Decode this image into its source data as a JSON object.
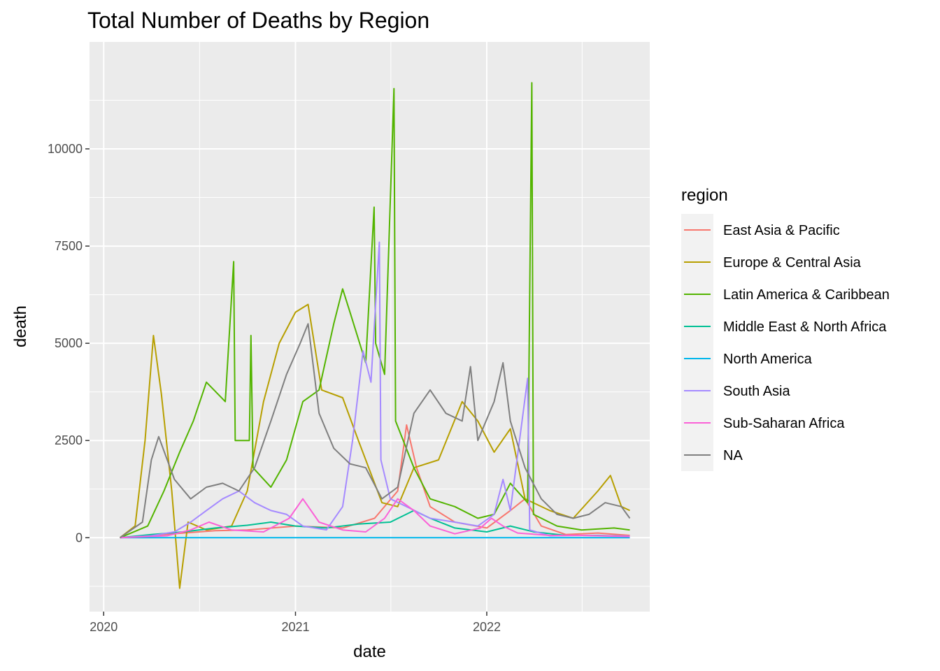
{
  "chart_data": {
    "type": "line",
    "title": "Total Number of Deaths by Region",
    "xlabel": "date",
    "ylabel": "death",
    "x_range": [
      "2019-12-05",
      "2022-11-08"
    ],
    "ylim": [
      -1900,
      12750
    ],
    "x_ticks": [
      "2020-01-01",
      "2021-01-01",
      "2022-01-01"
    ],
    "x_tick_labels": [
      "2020",
      "2021",
      "2022"
    ],
    "y_ticks": [
      0,
      2500,
      5000,
      7500,
      10000
    ],
    "y_tick_labels": [
      "0",
      "2500",
      "5000",
      "7500",
      "10000"
    ],
    "grid": true,
    "legend": {
      "title": "region",
      "position": "right"
    },
    "series": [
      {
        "name": "East Asia & Pacific",
        "color": "#F8766D",
        "points": [
          [
            "2020-02-01",
            0
          ],
          [
            "2020-04-01",
            60
          ],
          [
            "2020-06-01",
            120
          ],
          [
            "2020-08-01",
            180
          ],
          [
            "2020-10-01",
            200
          ],
          [
            "2021-01-01",
            300
          ],
          [
            "2021-04-01",
            250
          ],
          [
            "2021-06-01",
            500
          ],
          [
            "2021-07-15",
            1200
          ],
          [
            "2021-08-01",
            2900
          ],
          [
            "2021-08-20",
            1800
          ],
          [
            "2021-09-15",
            800
          ],
          [
            "2021-11-01",
            400
          ],
          [
            "2022-01-01",
            250
          ],
          [
            "2022-02-15",
            700
          ],
          [
            "2022-03-15",
            1000
          ],
          [
            "2022-04-15",
            300
          ],
          [
            "2022-06-01",
            80
          ],
          [
            "2022-08-01",
            120
          ],
          [
            "2022-10-01",
            60
          ]
        ]
      },
      {
        "name": "Europe & Central Asia",
        "color": "#B79F00",
        "points": [
          [
            "2020-02-01",
            0
          ],
          [
            "2020-03-01",
            300
          ],
          [
            "2020-03-20",
            2500
          ],
          [
            "2020-04-05",
            5200
          ],
          [
            "2020-04-20",
            3700
          ],
          [
            "2020-05-10",
            1200
          ],
          [
            "2020-05-25",
            -1300
          ],
          [
            "2020-06-10",
            400
          ],
          [
            "2020-07-15",
            200
          ],
          [
            "2020-09-01",
            300
          ],
          [
            "2020-10-01",
            1200
          ],
          [
            "2020-11-01",
            3500
          ],
          [
            "2020-12-01",
            5000
          ],
          [
            "2021-01-01",
            5800
          ],
          [
            "2021-01-25",
            6000
          ],
          [
            "2021-02-20",
            3800
          ],
          [
            "2021-04-01",
            3600
          ],
          [
            "2021-05-01",
            2500
          ],
          [
            "2021-06-15",
            900
          ],
          [
            "2021-07-15",
            800
          ],
          [
            "2021-08-15",
            1800
          ],
          [
            "2021-10-01",
            2000
          ],
          [
            "2021-11-15",
            3500
          ],
          [
            "2021-12-15",
            3000
          ],
          [
            "2022-01-15",
            2200
          ],
          [
            "2022-02-15",
            2800
          ],
          [
            "2022-03-15",
            1000
          ],
          [
            "2022-05-01",
            700
          ],
          [
            "2022-06-15",
            500
          ],
          [
            "2022-08-01",
            1200
          ],
          [
            "2022-08-25",
            1600
          ],
          [
            "2022-09-15",
            800
          ],
          [
            "2022-10-01",
            700
          ]
        ]
      },
      {
        "name": "Latin America & Caribbean",
        "color": "#53B400",
        "points": [
          [
            "2020-02-01",
            0
          ],
          [
            "2020-03-25",
            300
          ],
          [
            "2020-04-25",
            1200
          ],
          [
            "2020-05-25",
            2200
          ],
          [
            "2020-06-20",
            3000
          ],
          [
            "2020-07-15",
            4000
          ],
          [
            "2020-08-20",
            3500
          ],
          [
            "2020-09-05",
            7100
          ],
          [
            "2020-09-08",
            2500
          ],
          [
            "2020-10-05",
            2500
          ],
          [
            "2020-10-08",
            5200
          ],
          [
            "2020-10-12",
            1800
          ],
          [
            "2020-11-15",
            1300
          ],
          [
            "2020-12-15",
            2000
          ],
          [
            "2021-01-15",
            3500
          ],
          [
            "2021-02-15",
            3800
          ],
          [
            "2021-03-15",
            5500
          ],
          [
            "2021-04-01",
            6400
          ],
          [
            "2021-04-15",
            5800
          ],
          [
            "2021-05-15",
            4500
          ],
          [
            "2021-05-31",
            8500
          ],
          [
            "2021-06-03",
            5000
          ],
          [
            "2021-06-20",
            4200
          ],
          [
            "2021-07-08",
            11550
          ],
          [
            "2021-07-11",
            3000
          ],
          [
            "2021-08-15",
            1800
          ],
          [
            "2021-09-15",
            1000
          ],
          [
            "2021-11-01",
            800
          ],
          [
            "2021-12-15",
            500
          ],
          [
            "2022-01-15",
            600
          ],
          [
            "2022-02-15",
            1400
          ],
          [
            "2022-03-20",
            900
          ],
          [
            "2022-03-28",
            11700
          ],
          [
            "2022-03-31",
            600
          ],
          [
            "2022-05-15",
            300
          ],
          [
            "2022-07-01",
            200
          ],
          [
            "2022-09-01",
            250
          ],
          [
            "2022-10-01",
            200
          ]
        ]
      },
      {
        "name": "Middle East & North Africa",
        "color": "#00C094",
        "points": [
          [
            "2020-02-01",
            0
          ],
          [
            "2020-04-01",
            80
          ],
          [
            "2020-06-01",
            150
          ],
          [
            "2020-08-01",
            250
          ],
          [
            "2020-10-01",
            320
          ],
          [
            "2020-11-15",
            400
          ],
          [
            "2021-01-01",
            300
          ],
          [
            "2021-03-01",
            250
          ],
          [
            "2021-05-01",
            350
          ],
          [
            "2021-07-01",
            400
          ],
          [
            "2021-08-15",
            700
          ],
          [
            "2021-09-15",
            500
          ],
          [
            "2021-11-01",
            250
          ],
          [
            "2022-01-01",
            150
          ],
          [
            "2022-02-15",
            300
          ],
          [
            "2022-04-01",
            150
          ],
          [
            "2022-06-01",
            60
          ],
          [
            "2022-08-01",
            60
          ],
          [
            "2022-10-01",
            40
          ]
        ]
      },
      {
        "name": "North America",
        "color": "#00B6EB",
        "points": [
          [
            "2020-02-01",
            0
          ],
          [
            "2021-01-01",
            0
          ],
          [
            "2022-01-01",
            0
          ],
          [
            "2022-10-01",
            0
          ]
        ]
      },
      {
        "name": "South Asia",
        "color": "#A58AFF",
        "points": [
          [
            "2020-02-01",
            0
          ],
          [
            "2020-04-01",
            50
          ],
          [
            "2020-05-15",
            150
          ],
          [
            "2020-06-15",
            400
          ],
          [
            "2020-07-15",
            700
          ],
          [
            "2020-08-15",
            1000
          ],
          [
            "2020-09-15",
            1200
          ],
          [
            "2020-10-15",
            900
          ],
          [
            "2020-11-15",
            700
          ],
          [
            "2020-12-15",
            600
          ],
          [
            "2021-01-15",
            300
          ],
          [
            "2021-03-01",
            200
          ],
          [
            "2021-04-01",
            800
          ],
          [
            "2021-04-20",
            2500
          ],
          [
            "2021-05-10",
            4800
          ],
          [
            "2021-05-25",
            4000
          ],
          [
            "2021-06-10",
            7600
          ],
          [
            "2021-06-13",
            2000
          ],
          [
            "2021-07-01",
            1000
          ],
          [
            "2021-08-01",
            800
          ],
          [
            "2021-09-15",
            500
          ],
          [
            "2021-11-01",
            400
          ],
          [
            "2021-12-15",
            300
          ],
          [
            "2022-01-15",
            600
          ],
          [
            "2022-02-01",
            1500
          ],
          [
            "2022-02-15",
            700
          ],
          [
            "2022-03-20",
            4100
          ],
          [
            "2022-03-24",
            200
          ],
          [
            "2022-05-01",
            50
          ],
          [
            "2022-07-01",
            60
          ],
          [
            "2022-10-01",
            40
          ]
        ]
      },
      {
        "name": "Sub-Saharan Africa",
        "color": "#FB61D7",
        "points": [
          [
            "2020-02-01",
            0
          ],
          [
            "2020-05-01",
            50
          ],
          [
            "2020-06-15",
            200
          ],
          [
            "2020-07-20",
            400
          ],
          [
            "2020-09-01",
            200
          ],
          [
            "2020-11-01",
            150
          ],
          [
            "2020-12-20",
            500
          ],
          [
            "2021-01-15",
            1000
          ],
          [
            "2021-02-15",
            400
          ],
          [
            "2021-04-01",
            200
          ],
          [
            "2021-05-15",
            150
          ],
          [
            "2021-06-20",
            500
          ],
          [
            "2021-07-15",
            1000
          ],
          [
            "2021-08-15",
            700
          ],
          [
            "2021-09-15",
            300
          ],
          [
            "2021-11-01",
            100
          ],
          [
            "2021-12-20",
            250
          ],
          [
            "2022-01-10",
            500
          ],
          [
            "2022-02-01",
            300
          ],
          [
            "2022-03-01",
            120
          ],
          [
            "2022-05-01",
            60
          ],
          [
            "2022-07-01",
            60
          ],
          [
            "2022-10-01",
            30
          ]
        ]
      },
      {
        "name": "NA",
        "color": "#7F7F7F",
        "points": [
          [
            "2020-02-01",
            0
          ],
          [
            "2020-03-15",
            400
          ],
          [
            "2020-04-01",
            2000
          ],
          [
            "2020-04-15",
            2600
          ],
          [
            "2020-05-15",
            1500
          ],
          [
            "2020-06-15",
            1000
          ],
          [
            "2020-07-15",
            1300
          ],
          [
            "2020-08-15",
            1400
          ],
          [
            "2020-09-15",
            1200
          ],
          [
            "2020-10-15",
            1800
          ],
          [
            "2020-11-15",
            3000
          ],
          [
            "2020-12-15",
            4200
          ],
          [
            "2021-01-10",
            5000
          ],
          [
            "2021-01-25",
            5500
          ],
          [
            "2021-02-15",
            3200
          ],
          [
            "2021-03-15",
            2300
          ],
          [
            "2021-04-15",
            1900
          ],
          [
            "2021-05-15",
            1800
          ],
          [
            "2021-06-15",
            1000
          ],
          [
            "2021-07-15",
            1300
          ],
          [
            "2021-08-15",
            3200
          ],
          [
            "2021-09-15",
            3800
          ],
          [
            "2021-10-15",
            3200
          ],
          [
            "2021-11-15",
            3000
          ],
          [
            "2021-12-01",
            4400
          ],
          [
            "2021-12-15",
            2500
          ],
          [
            "2022-01-15",
            3500
          ],
          [
            "2022-02-01",
            4500
          ],
          [
            "2022-02-15",
            3000
          ],
          [
            "2022-03-15",
            1800
          ],
          [
            "2022-04-15",
            1000
          ],
          [
            "2022-05-15",
            600
          ],
          [
            "2022-06-15",
            500
          ],
          [
            "2022-07-15",
            600
          ],
          [
            "2022-08-15",
            900
          ],
          [
            "2022-09-15",
            800
          ],
          [
            "2022-10-01",
            500
          ]
        ]
      }
    ]
  }
}
